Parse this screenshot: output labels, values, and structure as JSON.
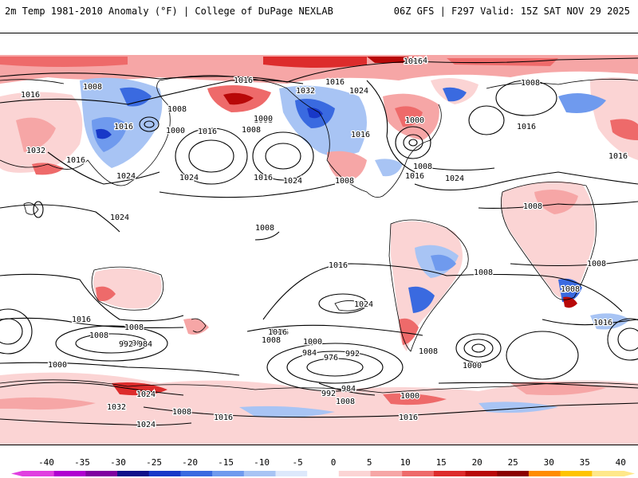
{
  "header": {
    "title": "2m Temp 1981-2010 Anomaly (°F) | College of DuPage NEXLAB",
    "run_info": "06Z GFS | F297 Valid: 15Z SAT NOV 29 2025"
  },
  "map": {
    "projection": "global cylindrical",
    "contour_labels": [
      "1024",
      "1008",
      "1016",
      "1016",
      "1008",
      "1032",
      "1024",
      "1008",
      "1016",
      "1000",
      "1008",
      "1016",
      "1024",
      "1008",
      "1016",
      "1016",
      "1000",
      "1000",
      "1016",
      "1032",
      "1024",
      "1016",
      "1024",
      "1024",
      "1024",
      "1016",
      "1008",
      "1008",
      "1024",
      "1016",
      "1016",
      "1008",
      "1016",
      "1008",
      "1008",
      "1008",
      "1008",
      "1016",
      "1008",
      "1024",
      "1016",
      "1008",
      "1016",
      "1016",
      "1016",
      "1008",
      "1000",
      "992",
      "984",
      "1016",
      "1000",
      "984",
      "976",
      "992",
      "1008",
      "1000",
      "1000",
      "1008",
      "1016",
      "1024",
      "1024",
      "984",
      "992",
      "1008",
      "1000",
      "1032",
      "1016",
      "1008",
      "1024",
      "1016"
    ]
  },
  "legend": {
    "ticks": [
      "-40",
      "-35",
      "-30",
      "-25",
      "-20",
      "-15",
      "-10",
      "-5",
      "0",
      "5",
      "10",
      "15",
      "20",
      "25",
      "30",
      "35",
      "40"
    ],
    "colors": [
      "#e040e0",
      "#b000d0",
      "#8000a0",
      "#10108a",
      "#1838c8",
      "#3a6ae0",
      "#6f9aee",
      "#a8c4f4",
      "#dde8fb",
      "#ffffff",
      "#fbd4d4",
      "#f6a6a6",
      "#ee6a6a",
      "#dd2c2c",
      "#b80808",
      "#8a0000",
      "#ff8c00",
      "#ffc400",
      "#ffe88a"
    ]
  }
}
